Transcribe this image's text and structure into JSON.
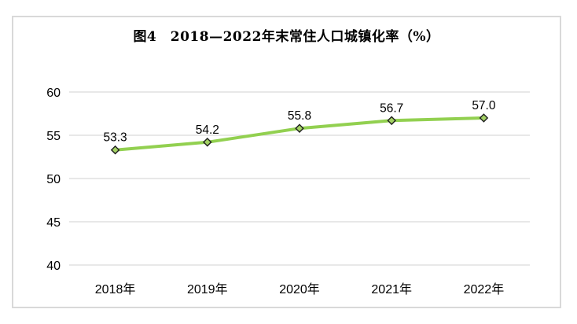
{
  "chart_data": {
    "type": "line",
    "title": "图4　2018—2022年末常住人口城镇化率（%）",
    "categories": [
      "2018年",
      "2019年",
      "2020年",
      "2021年",
      "2022年"
    ],
    "series": [
      {
        "name": "常住人口城镇化率",
        "values": [
          53.3,
          54.2,
          55.8,
          56.7,
          57.0
        ],
        "point_labels": [
          "53.3",
          "54.2",
          "55.8",
          "56.7",
          "57.0"
        ]
      }
    ],
    "xlabel": "",
    "ylabel": "",
    "ylim": [
      40,
      60
    ],
    "yticks": [
      40,
      45,
      50,
      55,
      60
    ],
    "grid": true,
    "legend": "none",
    "colors": {
      "line": "#92D050",
      "marker_fill": "#a3d164",
      "marker_stroke": "#1f1f1f",
      "gridline": "#d9d9d9",
      "frame_border": "#d9d9d9",
      "text": "#000000",
      "background": "#ffffff"
    }
  }
}
